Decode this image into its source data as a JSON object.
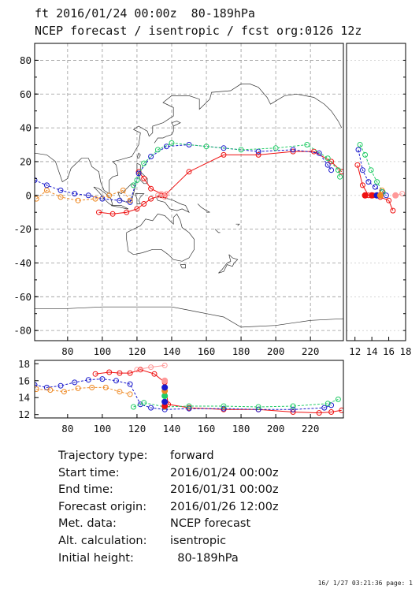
{
  "header": {
    "line1": "ft 2016/01/24 00:00z  80-189hPa",
    "line2": "NCEP forecast / isentropic / fcst org:0126 12z"
  },
  "info": [
    {
      "key": "Trajectory type:",
      "value": "forward"
    },
    {
      "key": "Start time:",
      "value": "2016/01/24 00:00z"
    },
    {
      "key": "End time:",
      "value": "2016/01/31 00:00z"
    },
    {
      "key": "Forecast origin:",
      "value": "2016/01/26 12:00z"
    },
    {
      "key": "Met. data:",
      "value": "NCEP forecast"
    },
    {
      "key": "Alt. calculation:",
      "value": "isentropic"
    },
    {
      "key": "Initial height:",
      "value": "  80-189hPa"
    }
  ],
  "footer": "16/ 1/27 03:21:36 page: 1",
  "colors": {
    "red": "#ee1111",
    "blue": "#1a1acc",
    "green": "#22cc66",
    "orange": "#ee8822",
    "pink": "#ff9999",
    "map": "#333333"
  },
  "chart_data": [
    {
      "type": "scatter",
      "panel": "map",
      "xlim": [
        61,
        239
      ],
      "ylim": [
        -86,
        90
      ],
      "xticks": [
        80,
        100,
        120,
        140,
        160,
        180,
        200,
        220
      ],
      "yticks": [
        -80,
        -60,
        -40,
        -20,
        0,
        20,
        40,
        60,
        80
      ],
      "grid": true,
      "series": [
        {
          "color": "red",
          "points": [
            [
              121,
              14
            ],
            [
              124,
              10
            ],
            [
              128,
              4
            ],
            [
              136,
              0
            ],
            [
              150,
              14
            ],
            [
              170,
              24
            ],
            [
              190,
              24
            ],
            [
              210,
              26
            ],
            [
              222,
              26
            ],
            [
              232,
              20
            ],
            [
              238,
              14
            ]
          ]
        },
        {
          "color": "blue",
          "points": [
            [
              61,
              9
            ],
            [
              68,
              6
            ],
            [
              76,
              3
            ],
            [
              84,
              1
            ],
            [
              92,
              0
            ],
            [
              100,
              -2
            ],
            [
              110,
              -3
            ],
            [
              116,
              -4
            ],
            [
              121,
              13
            ],
            [
              128,
              23
            ],
            [
              137,
              29
            ],
            [
              150,
              30
            ],
            [
              170,
              28
            ],
            [
              190,
              26
            ],
            [
              210,
              27
            ],
            [
              225,
              25
            ],
            [
              230,
              18
            ],
            [
              232,
              15
            ]
          ]
        },
        {
          "color": "green",
          "points": [
            [
              118,
              6
            ],
            [
              120,
              9
            ],
            [
              124,
              19
            ],
            [
              132,
              27
            ],
            [
              140,
              31
            ],
            [
              160,
              29
            ],
            [
              180,
              27
            ],
            [
              200,
              28
            ],
            [
              218,
              30
            ],
            [
              230,
              22
            ],
            [
              236,
              15
            ],
            [
              237,
              11
            ]
          ]
        },
        {
          "color": "orange",
          "points": [
            [
              62,
              -2
            ],
            [
              68,
              3
            ],
            [
              76,
              -1
            ],
            [
              86,
              -3
            ],
            [
              96,
              -2
            ],
            [
              104,
              0
            ],
            [
              112,
              3
            ],
            [
              116,
              -3
            ]
          ]
        },
        {
          "color": "red",
          "points": [
            [
              98,
              -10
            ],
            [
              106,
              -11
            ],
            [
              114,
              -10
            ],
            [
              120,
              -8
            ],
            [
              124,
              -5
            ],
            [
              128,
              -2
            ],
            [
              134,
              0
            ]
          ]
        },
        {
          "color": "pink",
          "points": [
            [
              132,
              0
            ],
            [
              134,
              1
            ],
            [
              136,
              -1
            ],
            [
              137,
              1
            ]
          ]
        }
      ]
    },
    {
      "type": "scatter",
      "panel": "height-vs-latitude",
      "xlim": [
        11,
        18
      ],
      "ylim": [
        -86,
        90
      ],
      "xticks": [
        12,
        14,
        16,
        18
      ],
      "series": [
        {
          "color": "red",
          "points": [
            [
              12.3,
              18
            ],
            [
              12.9,
              6
            ],
            [
              13.6,
              0
            ],
            [
              14.2,
              0
            ],
            [
              15.0,
              -1
            ],
            [
              16.0,
              -3
            ],
            [
              16.5,
              -9
            ]
          ]
        },
        {
          "color": "blue",
          "points": [
            [
              12.4,
              27
            ],
            [
              12.9,
              15
            ],
            [
              13.6,
              8
            ],
            [
              14.4,
              5
            ],
            [
              15.2,
              2
            ],
            [
              15.7,
              0
            ]
          ]
        },
        {
          "color": "green",
          "points": [
            [
              12.6,
              30
            ],
            [
              13.2,
              24
            ],
            [
              13.9,
              15
            ],
            [
              14.6,
              8
            ],
            [
              15.3,
              2
            ]
          ]
        },
        {
          "color": "orange",
          "points": [
            [
              14.5,
              0
            ],
            [
              15.2,
              3
            ]
          ]
        },
        {
          "color": "pink",
          "points": [
            [
              16.8,
              0
            ],
            [
              17.6,
              1
            ]
          ]
        }
      ]
    },
    {
      "type": "scatter",
      "panel": "height-vs-longitude",
      "xlim": [
        61,
        239
      ],
      "ylim": [
        11.6,
        18.4
      ],
      "xticks": [
        80,
        100,
        120,
        140,
        160,
        180,
        200,
        220
      ],
      "yticks": [
        12,
        14,
        16,
        18
      ],
      "series": [
        {
          "color": "red",
          "points": [
            [
              96,
              16.8
            ],
            [
              104,
              17.0
            ],
            [
              110,
              16.9
            ],
            [
              116,
              16.9
            ],
            [
              122,
              17.3
            ],
            [
              130,
              16.8
            ],
            [
              136,
              15.8
            ],
            [
              138,
              13.2
            ],
            [
              150,
              12.8
            ],
            [
              170,
              12.6
            ],
            [
              190,
              12.6
            ],
            [
              210,
              12.3
            ],
            [
              225,
              12.2
            ],
            [
              232,
              12.3
            ],
            [
              238,
              12.5
            ]
          ]
        },
        {
          "color": "blue",
          "points": [
            [
              61,
              15.5
            ],
            [
              68,
              15.2
            ],
            [
              76,
              15.4
            ],
            [
              84,
              15.8
            ],
            [
              92,
              16.1
            ],
            [
              100,
              16.2
            ],
            [
              108,
              16.0
            ],
            [
              116,
              15.6
            ],
            [
              122,
              13.2
            ],
            [
              128,
              12.8
            ],
            [
              136,
              12.6
            ],
            [
              150,
              12.7
            ],
            [
              170,
              12.7
            ],
            [
              190,
              12.6
            ],
            [
              210,
              12.6
            ],
            [
              228,
              12.8
            ],
            [
              232,
              13.1
            ]
          ]
        },
        {
          "color": "green",
          "points": [
            [
              118,
              12.9
            ],
            [
              124,
              13.4
            ],
            [
              136,
              12.9
            ],
            [
              150,
              13.0
            ],
            [
              170,
              13.0
            ],
            [
              190,
              12.9
            ],
            [
              210,
              13.0
            ],
            [
              230,
              13.3
            ],
            [
              236,
              13.8
            ]
          ]
        },
        {
          "color": "orange",
          "points": [
            [
              62,
              15.0
            ],
            [
              70,
              14.9
            ],
            [
              78,
              14.7
            ],
            [
              86,
              15.1
            ],
            [
              94,
              15.2
            ],
            [
              102,
              15.2
            ],
            [
              110,
              14.7
            ],
            [
              116,
              14.4
            ]
          ]
        },
        {
          "color": "pink",
          "points": [
            [
              120,
              17.3
            ],
            [
              128,
              17.6
            ],
            [
              136,
              17.8
            ]
          ]
        }
      ]
    }
  ]
}
